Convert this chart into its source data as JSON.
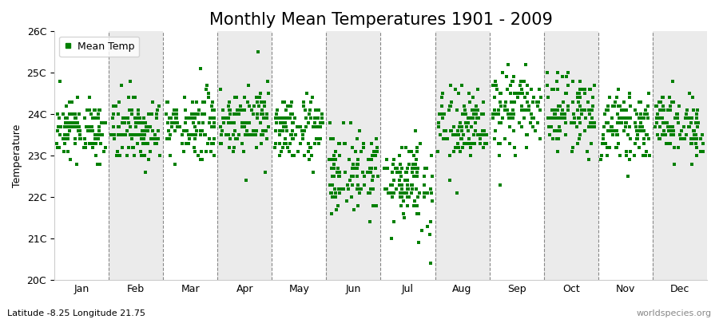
{
  "title": "Monthly Mean Temperatures 1901 - 2009",
  "ylabel": "Temperature",
  "xlabel": "",
  "footer_left": "Latitude -8.25 Longitude 21.75",
  "footer_right": "worldspecies.org",
  "legend_label": "Mean Temp",
  "ylim": [
    20,
    26
  ],
  "ytick_labels": [
    "20C",
    "21C",
    "22C",
    "23C",
    "24C",
    "25C",
    "26C"
  ],
  "ytick_values": [
    20,
    21,
    22,
    23,
    24,
    25,
    26
  ],
  "months": [
    "Jan",
    "Feb",
    "Mar",
    "Apr",
    "May",
    "Jun",
    "Jul",
    "Aug",
    "Sep",
    "Oct",
    "Nov",
    "Dec"
  ],
  "month_means": [
    23.65,
    23.65,
    23.75,
    23.9,
    23.65,
    22.6,
    22.4,
    23.65,
    24.1,
    24.05,
    23.7,
    23.75
  ],
  "month_stds": [
    0.35,
    0.4,
    0.42,
    0.42,
    0.4,
    0.5,
    0.6,
    0.48,
    0.48,
    0.43,
    0.38,
    0.38
  ],
  "n_years": 109,
  "marker_color": "#008000",
  "marker": "s",
  "marker_size": 2.5,
  "bg_color": "#FFFFFF",
  "band_color": "#EBEBEB",
  "dashed_color": "#888888",
  "title_fontsize": 15,
  "label_fontsize": 9,
  "tick_fontsize": 9,
  "footer_fontsize": 8
}
